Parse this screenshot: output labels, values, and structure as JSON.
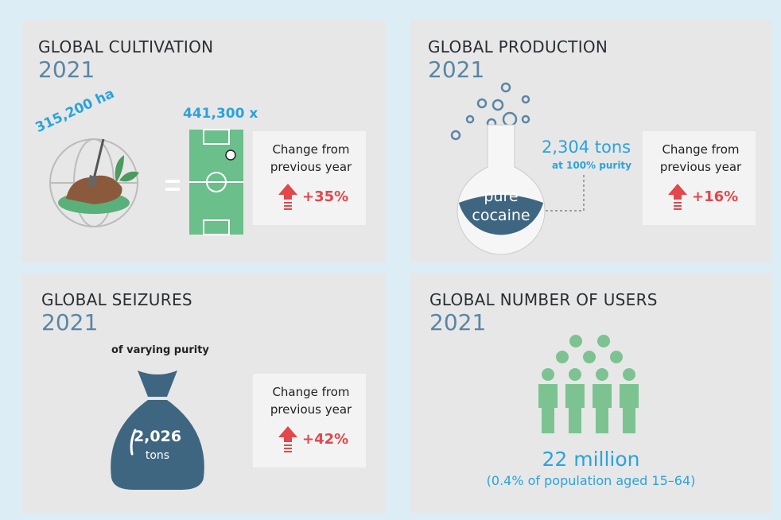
{
  "panels": [
    {
      "title": "GLOBAL CULTIVATION",
      "year": "2021",
      "area": "315,200 ha",
      "fields": "441,300 x",
      "change_label": "Change from previous year",
      "change": "+35%"
    },
    {
      "title": "GLOBAL PRODUCTION",
      "year": "2021",
      "flask_label": "pure cocaine",
      "amount": "2,304 tons",
      "amount_note": "at 100% purity",
      "change_label": "Change from previous year",
      "change": "+16%"
    },
    {
      "title": "GLOBAL SEIZURES",
      "year": "2021",
      "note": "of varying purity",
      "amount": "2,026",
      "unit": "tons",
      "change_label": "Change from previous year",
      "change": "+42%"
    },
    {
      "title": "GLOBAL NUMBER OF USERS",
      "year": "2021",
      "amount": "22 million",
      "amount_note": "(0.4% of population aged 15–64)"
    }
  ]
}
